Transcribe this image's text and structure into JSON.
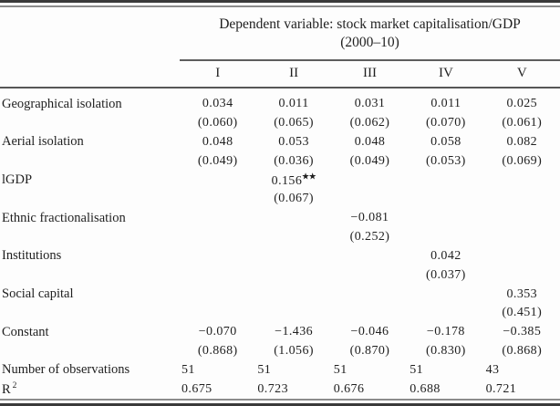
{
  "header": {
    "dep_var_line1": "Dependent variable: stock market capitalisation/GDP",
    "dep_var_line2": "(2000–10)"
  },
  "columns": [
    "I",
    "II",
    "III",
    "IV",
    "V"
  ],
  "rows": [
    {
      "label": "Geographical isolation",
      "values": [
        "0.034",
        "0.011",
        "0.031",
        "0.011",
        "0.025"
      ],
      "se": [
        "(0.060)",
        "(0.065)",
        "(0.062)",
        "(0.070)",
        "(0.061)"
      ]
    },
    {
      "label": "Aerial isolation",
      "values": [
        "0.048",
        "0.053",
        "0.048",
        "0.058",
        "0.082"
      ],
      "se": [
        "(0.049)",
        "(0.036)",
        "(0.049)",
        "(0.053)",
        "(0.069)"
      ]
    },
    {
      "label": "lGDP",
      "values": [
        "",
        "0.156",
        "",
        "",
        ""
      ],
      "sig": "★★",
      "se": [
        "",
        "(0.067)",
        "",
        "",
        ""
      ]
    },
    {
      "label": "Ethnic fractionalisation",
      "values": [
        "",
        "",
        "−0.081",
        "",
        ""
      ],
      "se": [
        "",
        "",
        "(0.252)",
        "",
        ""
      ]
    },
    {
      "label": "Institutions",
      "values": [
        "",
        "",
        "",
        "0.042",
        ""
      ],
      "se": [
        "",
        "",
        "",
        "(0.037)",
        ""
      ]
    },
    {
      "label": "Social capital",
      "values": [
        "",
        "",
        "",
        "",
        "0.353"
      ],
      "se": [
        "",
        "",
        "",
        "",
        "(0.451)"
      ]
    },
    {
      "label": "Constant",
      "values": [
        "−0.070",
        "−1.436",
        "−0.046",
        "−0.178",
        "−0.385"
      ],
      "se": [
        "(0.868)",
        "(1.056)",
        "(0.870)",
        "(0.830)",
        "(0.868)"
      ]
    }
  ],
  "summary": [
    {
      "label": "Number of observations",
      "values": [
        "51",
        "51",
        "51",
        "51",
        "43"
      ]
    },
    {
      "label": "R",
      "label_sup": "2",
      "values": [
        "0.675",
        "0.723",
        "0.676",
        "0.688",
        "0.721"
      ]
    }
  ]
}
